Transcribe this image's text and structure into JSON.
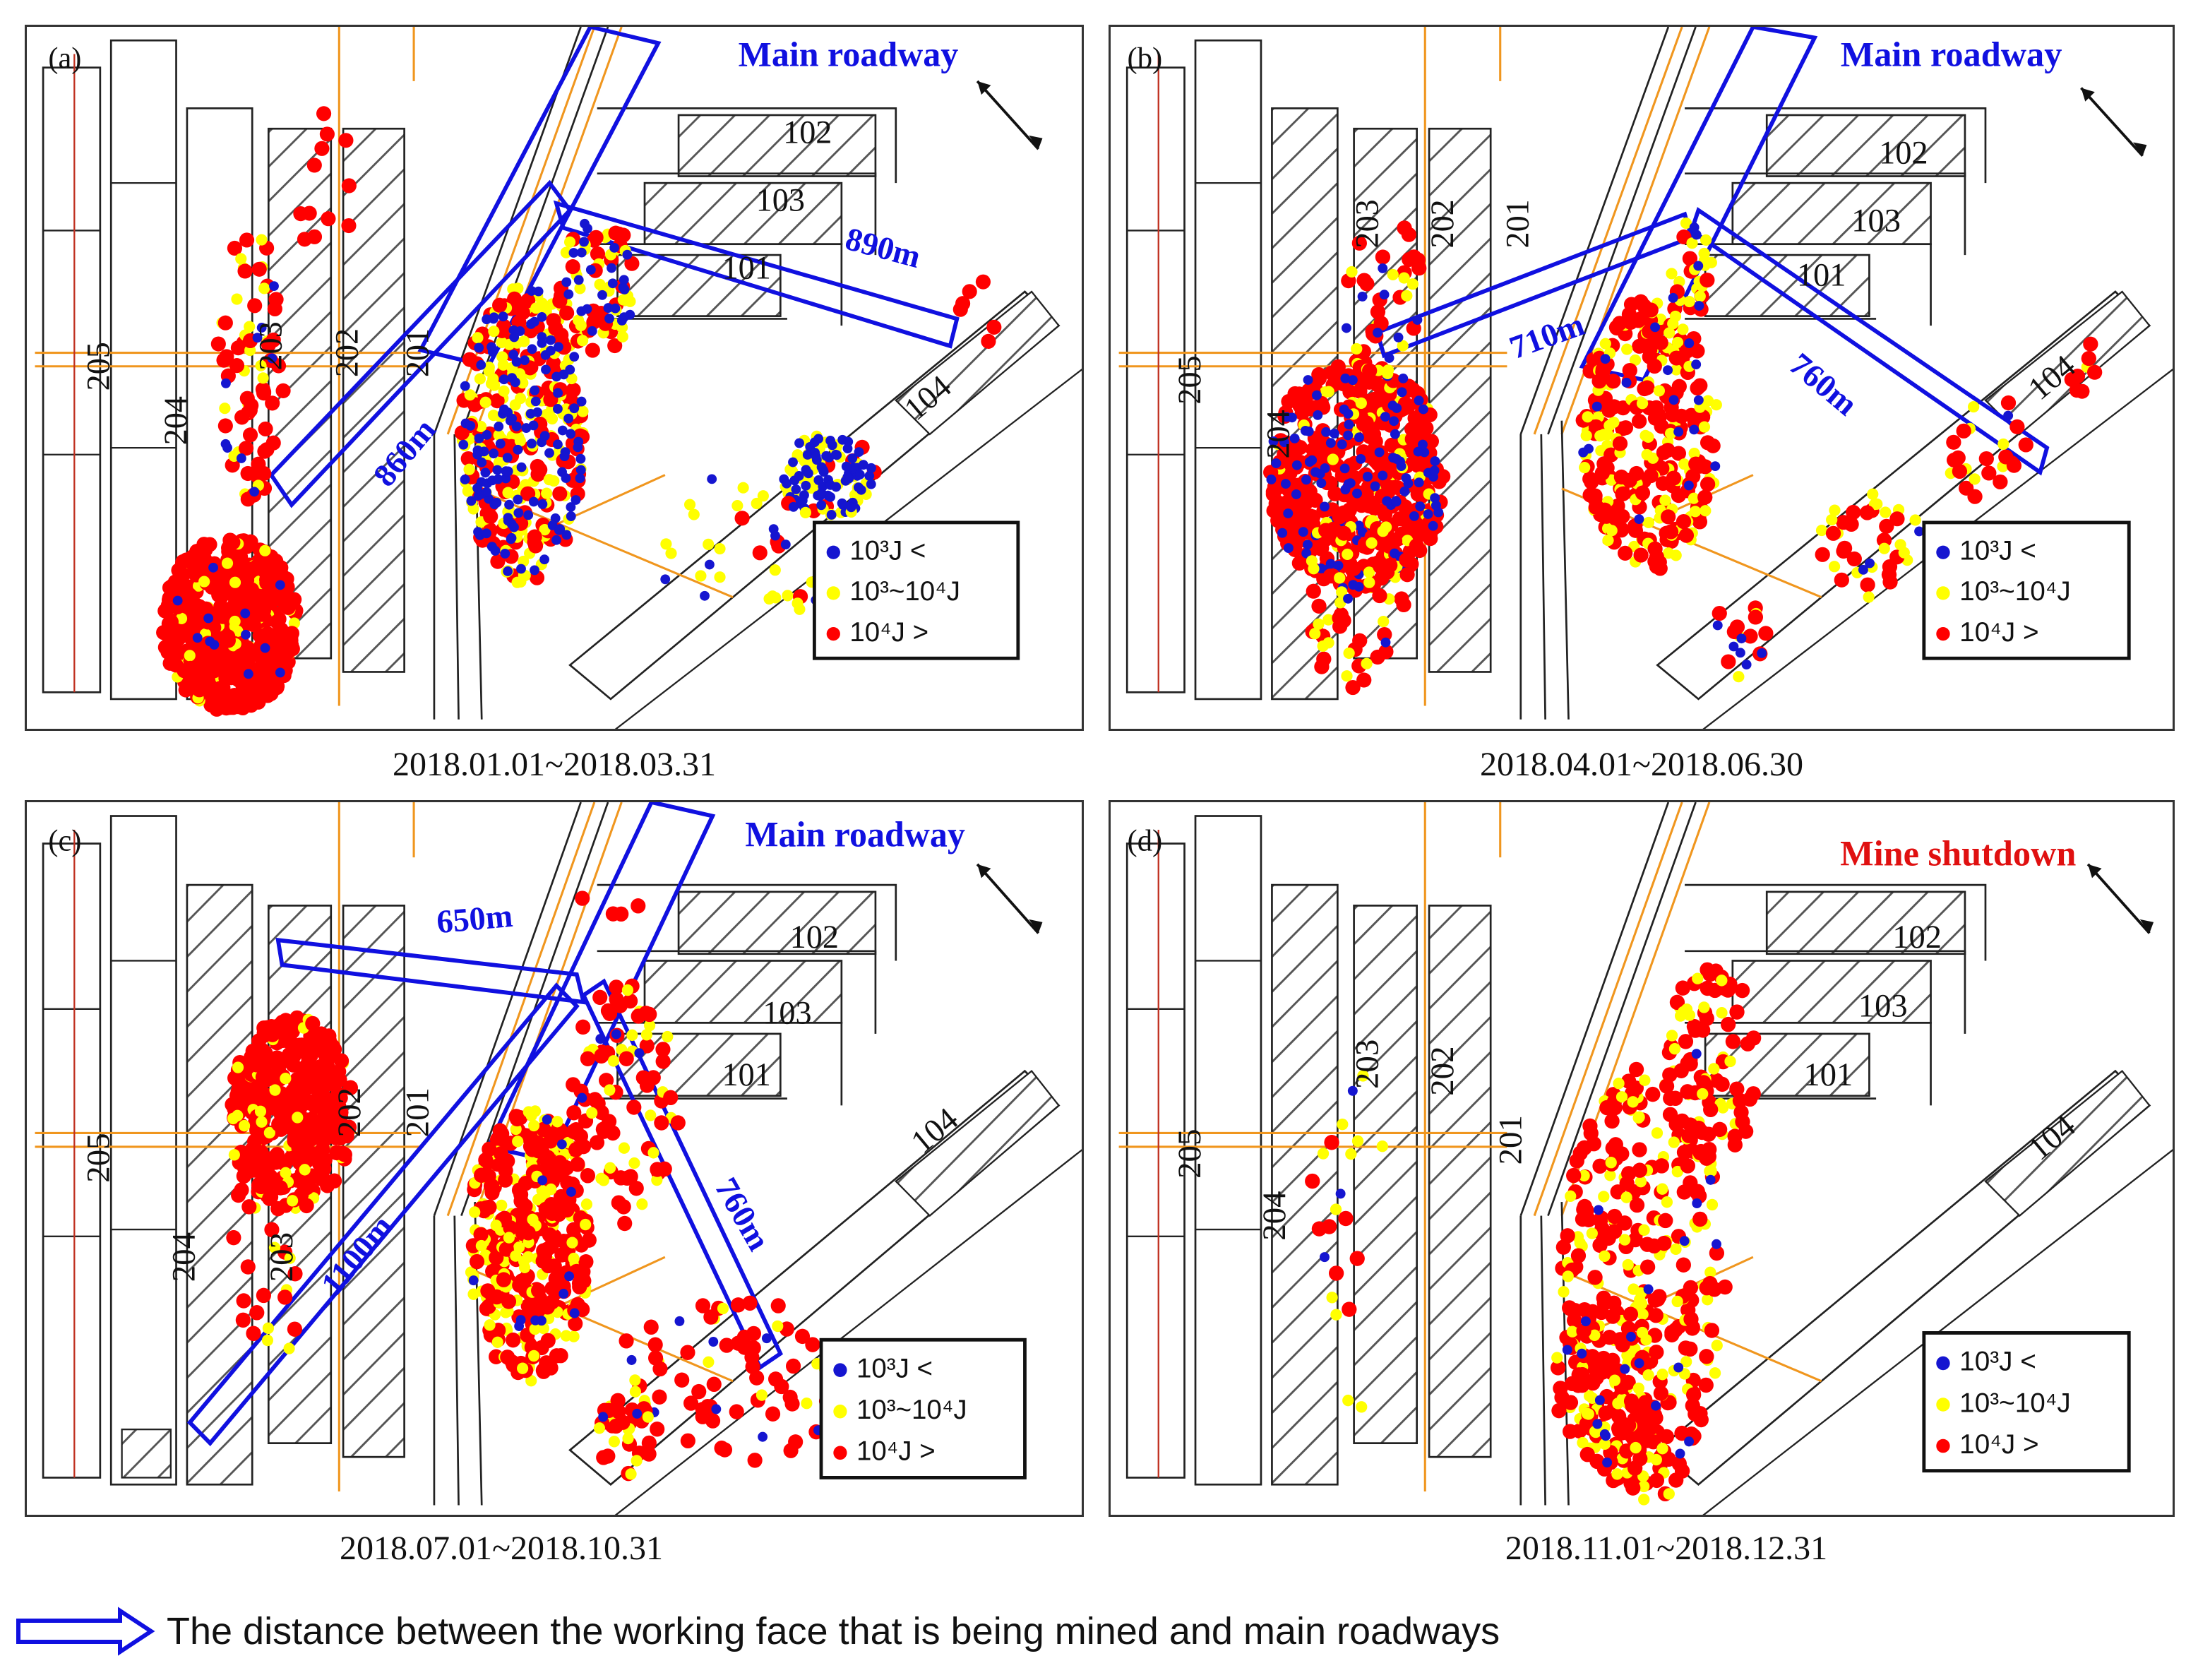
{
  "panels": [
    {
      "id": "a",
      "label": "(a)",
      "header": "Main roadway",
      "header_color": "#1010e0",
      "date_range": "2018.01.01~2018.03.31",
      "faces": {
        "f205": "205",
        "f204": "204",
        "f203": "203",
        "f202": "202",
        "f201": "201",
        "f102": "102",
        "f103": "103",
        "f101": "101",
        "f104": "104"
      },
      "distances": [
        "860m",
        "890m"
      ]
    },
    {
      "id": "b",
      "label": "(b)",
      "header": "Main roadway",
      "header_color": "#1010e0",
      "date_range": "2018.04.01~2018.06.30",
      "faces": {
        "f205": "205",
        "f204": "204",
        "f203": "203",
        "f202": "202",
        "f201": "201",
        "f102": "102",
        "f103": "103",
        "f101": "101",
        "f104": "104"
      },
      "distances": [
        "710m",
        "760m"
      ]
    },
    {
      "id": "c",
      "label": "(c)",
      "header": "Main roadway",
      "header_color": "#1010e0",
      "date_range": "2018.07.01~2018.10.31",
      "faces": {
        "f205": "205",
        "f204": "204",
        "f203": "203",
        "f202": "202",
        "f201": "201",
        "f102": "102",
        "f103": "103",
        "f101": "101",
        "f104": "104"
      },
      "distances": [
        "650m",
        "1100m",
        "760m"
      ]
    },
    {
      "id": "d",
      "label": "(d)",
      "header": "Mine shutdown",
      "header_color": "#e01010",
      "date_range": "2018.11.01~2018.12.31",
      "faces": {
        "f205": "205",
        "f204": "204",
        "f203": "203",
        "f202": "202",
        "f201": "201",
        "f102": "102",
        "f103": "103",
        "f101": "101",
        "f104": "104"
      },
      "distances": []
    }
  ],
  "legend": {
    "blue_label": "10³J <",
    "yellow_label": "10³~10⁴J",
    "red_label": "10⁴J >",
    "colors": {
      "low": "#1515d0",
      "mid": "#ffff00",
      "high": "#ff0000"
    }
  },
  "footer": {
    "text": "The distance between the working face that is being mined and main roadways",
    "arrow_icon": "hollow-arrow-icon"
  }
}
